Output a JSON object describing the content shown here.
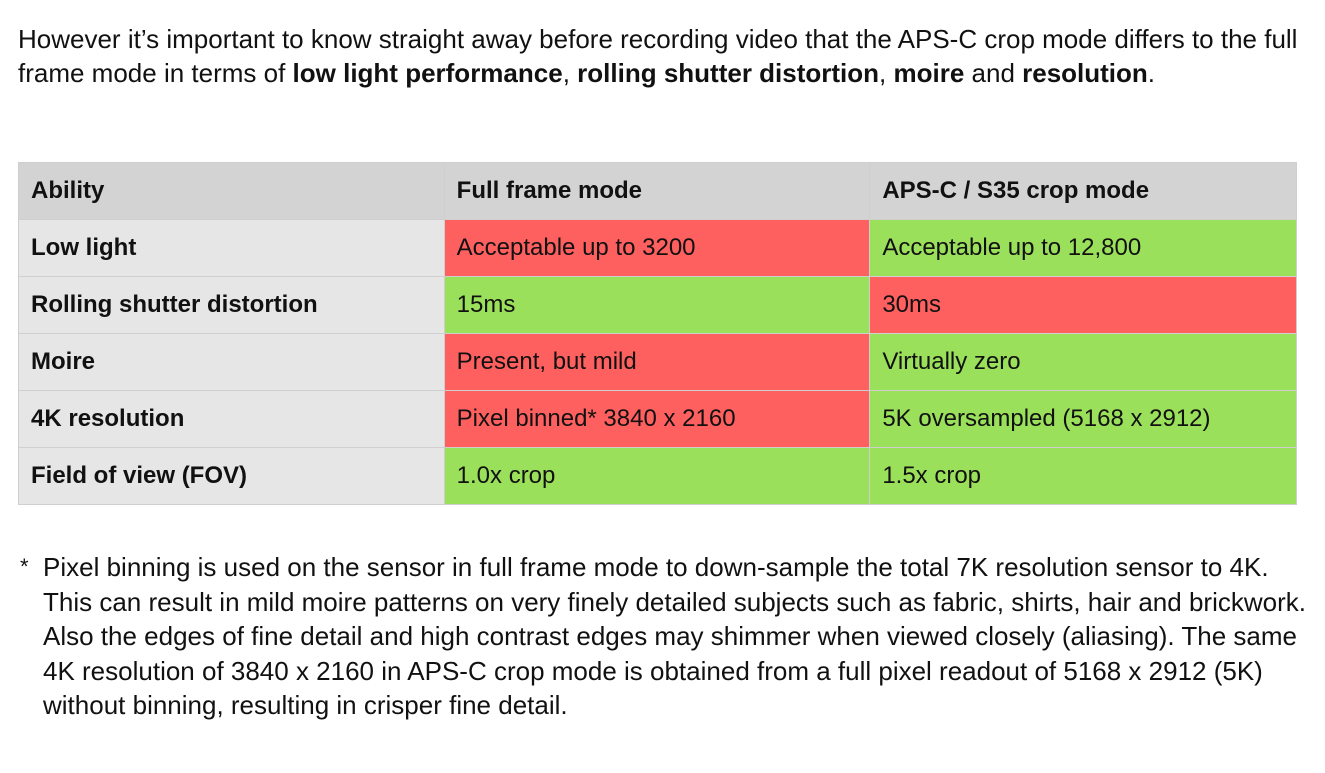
{
  "intro": {
    "parts": [
      {
        "text": "However it’s important to know straight away before recording video that the APS-C crop mode differs to the full frame mode in terms of ",
        "bold": false
      },
      {
        "text": "low light performance",
        "bold": true
      },
      {
        "text": ", ",
        "bold": false
      },
      {
        "text": "rolling shutter distortion",
        "bold": true
      },
      {
        "text": ", ",
        "bold": false
      },
      {
        "text": "moire",
        "bold": true
      },
      {
        "text": " and ",
        "bold": false
      },
      {
        "text": "resolution",
        "bold": true
      },
      {
        "text": ".",
        "bold": false
      }
    ]
  },
  "table": {
    "header": [
      "Ability",
      "Full frame mode",
      "APS-C / S35 crop mode"
    ],
    "rows": [
      [
        {
          "text": "Low light"
        },
        {
          "text": "Acceptable up to 3200",
          "color": "#fe5f5f"
        },
        {
          "text": "Acceptable up to 12,800",
          "color": "#9be05b"
        }
      ],
      [
        {
          "text": "Rolling shutter distortion"
        },
        {
          "text": "15ms",
          "color": "#9be05b"
        },
        {
          "text": "30ms",
          "color": "#fe5f5f"
        }
      ],
      [
        {
          "text": "Moire"
        },
        {
          "text": "Present, but mild",
          "color": "#fe5f5f"
        },
        {
          "text": "Virtually zero",
          "color": "#9be05b"
        }
      ],
      [
        {
          "text": "4K resolution"
        },
        {
          "text": "Pixel binned* 3840 x 2160",
          "color": "#fe5f5f"
        },
        {
          "text": "5K oversampled (5168 x 2912)",
          "color": "#9be05b"
        }
      ],
      [
        {
          "text": "Field of view (FOV)"
        },
        {
          "text": "1.0x crop",
          "color": "#9be05b"
        },
        {
          "text": "1.5x crop",
          "color": "#9be05b"
        }
      ]
    ]
  },
  "footnote": {
    "marker": "*",
    "text": "Pixel binning is used on the sensor in full frame mode to down-sample the total 7K resolution sensor to 4K. This can result in mild moire patterns on very finely detailed subjects such as fabric, shirts, hair and brickwork. Also the edges of fine detail and high contrast edges may shimmer when viewed closely (aliasing). The same 4K resolution of 3840 x 2160 in APS-C crop mode is obtained from a full pixel readout of 5168 x 2912 (5K) without binning, resulting in crisper fine detail."
  }
}
